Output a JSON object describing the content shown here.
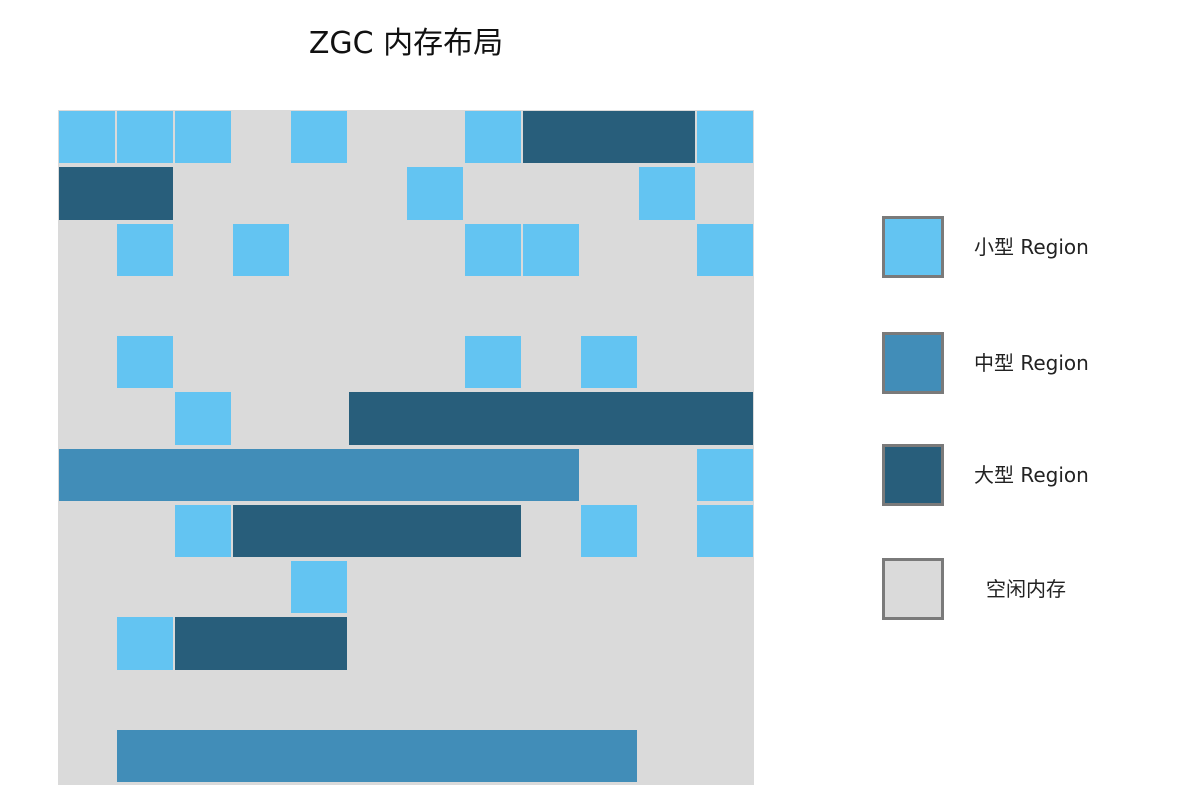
{
  "title": "ZGC 内存布局",
  "colors": {
    "small": "#63c4f2",
    "medium": "#418db8",
    "large": "#285e7b",
    "free": "#dadada"
  },
  "legend": [
    {
      "key": "small",
      "label": "小型 Region",
      "icon": "small-region-swatch"
    },
    {
      "key": "medium",
      "label": "中型 Region",
      "icon": "medium-region-swatch"
    },
    {
      "key": "large",
      "label": "大型 Region",
      "icon": "large-region-swatch"
    },
    {
      "key": "free",
      "label": "空闲内存",
      "icon": "free-memory-swatch"
    }
  ],
  "memory": {
    "rows": 12,
    "cols": 12,
    "regions": [
      {
        "row": 0,
        "col": 0,
        "span": 1,
        "type": "small"
      },
      {
        "row": 0,
        "col": 1,
        "span": 1,
        "type": "small"
      },
      {
        "row": 0,
        "col": 2,
        "span": 1,
        "type": "small"
      },
      {
        "row": 0,
        "col": 4,
        "span": 1,
        "type": "small"
      },
      {
        "row": 0,
        "col": 7,
        "span": 1,
        "type": "small"
      },
      {
        "row": 0,
        "col": 8,
        "span": 3,
        "type": "large"
      },
      {
        "row": 0,
        "col": 11,
        "span": 1,
        "type": "small"
      },
      {
        "row": 1,
        "col": 0,
        "span": 2,
        "type": "large"
      },
      {
        "row": 1,
        "col": 6,
        "span": 1,
        "type": "small"
      },
      {
        "row": 1,
        "col": 10,
        "span": 1,
        "type": "small"
      },
      {
        "row": 2,
        "col": 1,
        "span": 1,
        "type": "small"
      },
      {
        "row": 2,
        "col": 3,
        "span": 1,
        "type": "small"
      },
      {
        "row": 2,
        "col": 7,
        "span": 1,
        "type": "small"
      },
      {
        "row": 2,
        "col": 8,
        "span": 1,
        "type": "small"
      },
      {
        "row": 2,
        "col": 11,
        "span": 1,
        "type": "small"
      },
      {
        "row": 4,
        "col": 1,
        "span": 1,
        "type": "small"
      },
      {
        "row": 4,
        "col": 7,
        "span": 1,
        "type": "small"
      },
      {
        "row": 4,
        "col": 9,
        "span": 1,
        "type": "small"
      },
      {
        "row": 5,
        "col": 2,
        "span": 1,
        "type": "small"
      },
      {
        "row": 5,
        "col": 5,
        "span": 7,
        "type": "large"
      },
      {
        "row": 6,
        "col": 0,
        "span": 9,
        "type": "medium"
      },
      {
        "row": 6,
        "col": 11,
        "span": 1,
        "type": "small"
      },
      {
        "row": 7,
        "col": 2,
        "span": 1,
        "type": "small"
      },
      {
        "row": 7,
        "col": 3,
        "span": 5,
        "type": "large"
      },
      {
        "row": 7,
        "col": 9,
        "span": 1,
        "type": "small"
      },
      {
        "row": 7,
        "col": 11,
        "span": 1,
        "type": "small"
      },
      {
        "row": 8,
        "col": 4,
        "span": 1,
        "type": "small"
      },
      {
        "row": 9,
        "col": 1,
        "span": 1,
        "type": "small"
      },
      {
        "row": 9,
        "col": 2,
        "span": 3,
        "type": "large"
      },
      {
        "row": 11,
        "col": 1,
        "span": 9,
        "type": "medium"
      }
    ]
  }
}
